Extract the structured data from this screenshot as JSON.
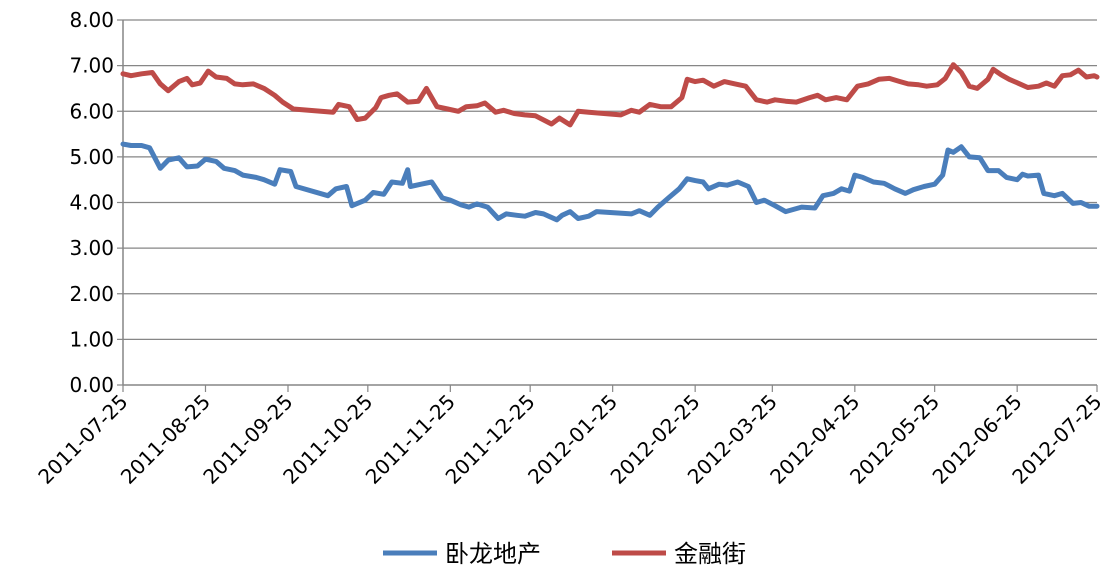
{
  "chart_data": {
    "type": "line",
    "title": "",
    "xlabel": "",
    "ylabel": "",
    "ylim": [
      0,
      8
    ],
    "y_ticks": [
      "0.00",
      "1.00",
      "2.00",
      "3.00",
      "4.00",
      "5.00",
      "6.00",
      "7.00",
      "8.00"
    ],
    "x_ticks": [
      "2011-07-25",
      "2011-08-25",
      "2011-09-25",
      "2011-10-25",
      "2011-11-25",
      "2011-12-25",
      "2012-01-25",
      "2012-02-25",
      "2012-03-25",
      "2012-04-25",
      "2012-05-25",
      "2012-06-25",
      "2012-07-25"
    ],
    "grid": true,
    "legend_position": "bottom",
    "series": [
      {
        "name": "卧龙地产",
        "color": "#4a7ebb",
        "points": [
          [
            "2011-07-25",
            5.28
          ],
          [
            "2011-07-28",
            5.25
          ],
          [
            "2011-08-01",
            5.25
          ],
          [
            "2011-08-04",
            5.2
          ],
          [
            "2011-08-08",
            4.75
          ],
          [
            "2011-08-11",
            4.93
          ],
          [
            "2011-08-15",
            4.98
          ],
          [
            "2011-08-18",
            4.78
          ],
          [
            "2011-08-22",
            4.8
          ],
          [
            "2011-08-25",
            4.95
          ],
          [
            "2011-08-29",
            4.9
          ],
          [
            "2011-09-01",
            4.75
          ],
          [
            "2011-09-05",
            4.7
          ],
          [
            "2011-09-08",
            4.6
          ],
          [
            "2011-09-13",
            4.55
          ],
          [
            "2011-09-16",
            4.5
          ],
          [
            "2011-09-20",
            4.4
          ],
          [
            "2011-09-22",
            4.72
          ],
          [
            "2011-09-26",
            4.68
          ],
          [
            "2011-09-28",
            4.35
          ],
          [
            "2011-10-10",
            4.15
          ],
          [
            "2011-10-13",
            4.3
          ],
          [
            "2011-10-17",
            4.35
          ],
          [
            "2011-10-19",
            3.93
          ],
          [
            "2011-10-24",
            4.05
          ],
          [
            "2011-10-27",
            4.22
          ],
          [
            "2011-10-31",
            4.18
          ],
          [
            "2011-11-03",
            4.45
          ],
          [
            "2011-11-07",
            4.42
          ],
          [
            "2011-11-09",
            4.72
          ],
          [
            "2011-11-10",
            4.35
          ],
          [
            "2011-11-14",
            4.4
          ],
          [
            "2011-11-18",
            4.45
          ],
          [
            "2011-11-22",
            4.1
          ],
          [
            "2011-11-25",
            4.05
          ],
          [
            "2011-11-29",
            3.95
          ],
          [
            "2011-12-02",
            3.9
          ],
          [
            "2011-12-05",
            3.97
          ],
          [
            "2011-12-09",
            3.9
          ],
          [
            "2011-12-13",
            3.65
          ],
          [
            "2011-12-16",
            3.75
          ],
          [
            "2011-12-20",
            3.72
          ],
          [
            "2011-12-23",
            3.7
          ],
          [
            "2011-12-27",
            3.78
          ],
          [
            "2011-12-30",
            3.75
          ],
          [
            "2012-01-04",
            3.62
          ],
          [
            "2012-01-06",
            3.72
          ],
          [
            "2012-01-09",
            3.8
          ],
          [
            "2012-01-12",
            3.65
          ],
          [
            "2012-01-16",
            3.7
          ],
          [
            "2012-01-19",
            3.8
          ],
          [
            "2012-02-01",
            3.75
          ],
          [
            "2012-02-04",
            3.82
          ],
          [
            "2012-02-08",
            3.72
          ],
          [
            "2012-02-11",
            3.9
          ],
          [
            "2012-02-15",
            4.1
          ],
          [
            "2012-02-19",
            4.3
          ],
          [
            "2012-02-22",
            4.52
          ],
          [
            "2012-02-25",
            4.48
          ],
          [
            "2012-02-28",
            4.45
          ],
          [
            "2012-03-01",
            4.3
          ],
          [
            "2012-03-05",
            4.4
          ],
          [
            "2012-03-08",
            4.38
          ],
          [
            "2012-03-12",
            4.45
          ],
          [
            "2012-03-16",
            4.35
          ],
          [
            "2012-03-19",
            4.0
          ],
          [
            "2012-03-22",
            4.05
          ],
          [
            "2012-03-26",
            3.93
          ],
          [
            "2012-03-30",
            3.8
          ],
          [
            "2012-04-05",
            3.9
          ],
          [
            "2012-04-10",
            3.88
          ],
          [
            "2012-04-13",
            4.15
          ],
          [
            "2012-04-17",
            4.2
          ],
          [
            "2012-04-20",
            4.3
          ],
          [
            "2012-04-23",
            4.25
          ],
          [
            "2012-04-25",
            4.6
          ],
          [
            "2012-04-28",
            4.55
          ],
          [
            "2012-05-02",
            4.45
          ],
          [
            "2012-05-06",
            4.42
          ],
          [
            "2012-05-10",
            4.3
          ],
          [
            "2012-05-14",
            4.2
          ],
          [
            "2012-05-17",
            4.28
          ],
          [
            "2012-05-21",
            4.35
          ],
          [
            "2012-05-25",
            4.4
          ],
          [
            "2012-05-28",
            4.6
          ],
          [
            "2012-05-30",
            5.15
          ],
          [
            "2012-06-01",
            5.1
          ],
          [
            "2012-06-04",
            5.22
          ],
          [
            "2012-06-07",
            5.0
          ],
          [
            "2012-06-11",
            4.98
          ],
          [
            "2012-06-14",
            4.7
          ],
          [
            "2012-06-18",
            4.7
          ],
          [
            "2012-06-21",
            4.55
          ],
          [
            "2012-06-25",
            4.5
          ],
          [
            "2012-06-27",
            4.62
          ],
          [
            "2012-06-29",
            4.58
          ],
          [
            "2012-07-03",
            4.6
          ],
          [
            "2012-07-05",
            4.2
          ],
          [
            "2012-07-09",
            4.15
          ],
          [
            "2012-07-12",
            4.2
          ],
          [
            "2012-07-16",
            3.98
          ],
          [
            "2012-07-19",
            4.0
          ],
          [
            "2012-07-22",
            3.92
          ],
          [
            "2012-07-25",
            3.92
          ]
        ]
      },
      {
        "name": "金融街",
        "color": "#be4b48",
        "points": [
          [
            "2011-07-25",
            6.82
          ],
          [
            "2011-07-28",
            6.78
          ],
          [
            "2011-08-01",
            6.82
          ],
          [
            "2011-08-05",
            6.85
          ],
          [
            "2011-08-08",
            6.6
          ],
          [
            "2011-08-11",
            6.45
          ],
          [
            "2011-08-15",
            6.65
          ],
          [
            "2011-08-18",
            6.72
          ],
          [
            "2011-08-20",
            6.58
          ],
          [
            "2011-08-23",
            6.62
          ],
          [
            "2011-08-26",
            6.88
          ],
          [
            "2011-08-29",
            6.75
          ],
          [
            "2011-09-02",
            6.72
          ],
          [
            "2011-09-05",
            6.6
          ],
          [
            "2011-09-08",
            6.58
          ],
          [
            "2011-09-12",
            6.6
          ],
          [
            "2011-09-16",
            6.5
          ],
          [
            "2011-09-20",
            6.35
          ],
          [
            "2011-09-23",
            6.2
          ],
          [
            "2011-09-27",
            6.05
          ],
          [
            "2011-10-12",
            5.98
          ],
          [
            "2011-10-14",
            6.15
          ],
          [
            "2011-10-18",
            6.1
          ],
          [
            "2011-10-21",
            5.82
          ],
          [
            "2011-10-24",
            5.85
          ],
          [
            "2011-10-28",
            6.08
          ],
          [
            "2011-10-30",
            6.3
          ],
          [
            "2011-11-02",
            6.35
          ],
          [
            "2011-11-05",
            6.38
          ],
          [
            "2011-11-09",
            6.2
          ],
          [
            "2011-11-13",
            6.22
          ],
          [
            "2011-11-16",
            6.5
          ],
          [
            "2011-11-20",
            6.1
          ],
          [
            "2011-11-24",
            6.05
          ],
          [
            "2011-11-28",
            6.0
          ],
          [
            "2011-12-01",
            6.1
          ],
          [
            "2011-12-05",
            6.12
          ],
          [
            "2011-12-08",
            6.18
          ],
          [
            "2011-12-12",
            5.98
          ],
          [
            "2011-12-15",
            6.02
          ],
          [
            "2011-12-19",
            5.95
          ],
          [
            "2011-12-23",
            5.92
          ],
          [
            "2011-12-27",
            5.9
          ],
          [
            "2012-01-02",
            5.72
          ],
          [
            "2012-01-05",
            5.85
          ],
          [
            "2012-01-09",
            5.7
          ],
          [
            "2012-01-12",
            6.0
          ],
          [
            "2012-01-16",
            5.98
          ],
          [
            "2012-01-28",
            5.92
          ],
          [
            "2012-02-01",
            6.02
          ],
          [
            "2012-02-04",
            5.98
          ],
          [
            "2012-02-08",
            6.15
          ],
          [
            "2012-02-12",
            6.1
          ],
          [
            "2012-02-16",
            6.1
          ],
          [
            "2012-02-20",
            6.3
          ],
          [
            "2012-02-22",
            6.7
          ],
          [
            "2012-02-25",
            6.65
          ],
          [
            "2012-02-28",
            6.68
          ],
          [
            "2012-03-03",
            6.55
          ],
          [
            "2012-03-07",
            6.65
          ],
          [
            "2012-03-11",
            6.6
          ],
          [
            "2012-03-15",
            6.55
          ],
          [
            "2012-03-19",
            6.25
          ],
          [
            "2012-03-23",
            6.2
          ],
          [
            "2012-03-26",
            6.25
          ],
          [
            "2012-03-30",
            6.22
          ],
          [
            "2012-04-03",
            6.2
          ],
          [
            "2012-04-08",
            6.3
          ],
          [
            "2012-04-11",
            6.35
          ],
          [
            "2012-04-14",
            6.25
          ],
          [
            "2012-04-18",
            6.3
          ],
          [
            "2012-04-22",
            6.25
          ],
          [
            "2012-04-26",
            6.55
          ],
          [
            "2012-04-30",
            6.6
          ],
          [
            "2012-05-04",
            6.7
          ],
          [
            "2012-05-08",
            6.72
          ],
          [
            "2012-05-12",
            6.65
          ],
          [
            "2012-05-15",
            6.6
          ],
          [
            "2012-05-19",
            6.58
          ],
          [
            "2012-05-22",
            6.55
          ],
          [
            "2012-05-26",
            6.58
          ],
          [
            "2012-05-29",
            6.72
          ],
          [
            "2012-06-01",
            7.02
          ],
          [
            "2012-06-04",
            6.85
          ],
          [
            "2012-06-07",
            6.55
          ],
          [
            "2012-06-10",
            6.5
          ],
          [
            "2012-06-14",
            6.7
          ],
          [
            "2012-06-16",
            6.92
          ],
          [
            "2012-06-19",
            6.8
          ],
          [
            "2012-06-22",
            6.7
          ],
          [
            "2012-06-26",
            6.6
          ],
          [
            "2012-06-29",
            6.52
          ],
          [
            "2012-07-03",
            6.55
          ],
          [
            "2012-07-06",
            6.62
          ],
          [
            "2012-07-09",
            6.55
          ],
          [
            "2012-07-12",
            6.78
          ],
          [
            "2012-07-15",
            6.8
          ],
          [
            "2012-07-18",
            6.9
          ],
          [
            "2012-07-21",
            6.75
          ],
          [
            "2012-07-24",
            6.78
          ],
          [
            "2012-07-25",
            6.75
          ]
        ]
      }
    ]
  }
}
